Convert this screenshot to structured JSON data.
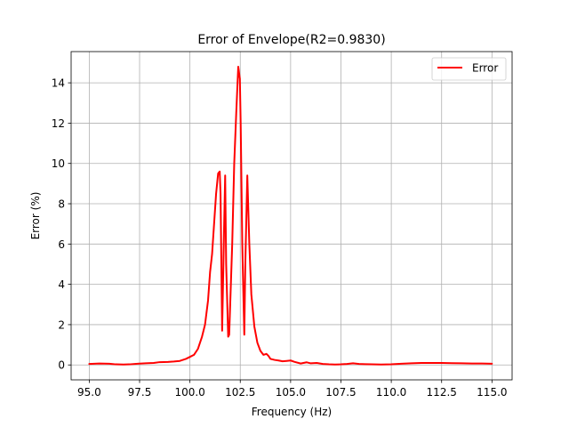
{
  "chart_data": {
    "type": "line",
    "title": "Error of Envelope(R2=0.9830)",
    "xlabel": "Frequency (Hz)",
    "ylabel": "Error (%)",
    "xlim": [
      94.1,
      116.0
    ],
    "ylim": [
      -0.74,
      15.55
    ],
    "xticks": [
      95.0,
      97.5,
      100.0,
      102.5,
      105.0,
      107.5,
      110.0,
      112.5,
      115.0
    ],
    "xtick_labels": [
      "95.0",
      "97.5",
      "100.0",
      "102.5",
      "105.0",
      "107.5",
      "110.0",
      "112.5",
      "115.0"
    ],
    "yticks": [
      0,
      2,
      4,
      6,
      8,
      10,
      12,
      14
    ],
    "ytick_labels": [
      "0",
      "2",
      "4",
      "6",
      "8",
      "10",
      "12",
      "14"
    ],
    "grid": true,
    "legend_position": "top-right",
    "series": [
      {
        "name": "Error",
        "color": "#ff0000",
        "x": [
          95.0,
          95.5,
          96.0,
          96.3,
          96.7,
          97.0,
          97.4,
          97.8,
          98.2,
          98.5,
          98.9,
          99.2,
          99.5,
          99.8,
          100.0,
          100.2,
          100.4,
          100.6,
          100.75,
          100.9,
          101.0,
          101.1,
          101.2,
          101.3,
          101.4,
          101.48,
          101.52,
          101.6,
          101.7,
          101.75,
          101.8,
          101.9,
          101.95,
          102.0,
          102.1,
          102.2,
          102.3,
          102.4,
          102.48,
          102.52,
          102.6,
          102.7,
          102.75,
          102.85,
          102.95,
          103.05,
          103.2,
          103.35,
          103.5,
          103.65,
          103.8,
          103.9,
          104.0,
          104.2,
          104.4,
          104.6,
          104.8,
          105.0,
          105.2,
          105.5,
          105.8,
          106.0,
          106.3,
          106.6,
          106.9,
          107.2,
          107.5,
          107.8,
          108.1,
          108.4,
          108.7,
          109.0,
          109.5,
          110.0,
          110.5,
          111.0,
          111.5,
          112.0,
          112.5,
          113.0,
          113.5,
          114.0,
          114.5,
          115.0
        ],
        "y": [
          0.05,
          0.07,
          0.06,
          0.03,
          0.02,
          0.03,
          0.06,
          0.08,
          0.1,
          0.14,
          0.15,
          0.17,
          0.2,
          0.3,
          0.4,
          0.5,
          0.8,
          1.4,
          2.0,
          3.2,
          4.6,
          5.5,
          7.0,
          8.5,
          9.5,
          9.6,
          8.5,
          1.7,
          7.0,
          9.4,
          5.0,
          1.4,
          1.5,
          3.0,
          6.0,
          10.0,
          12.5,
          14.8,
          14.2,
          12.0,
          6.0,
          1.5,
          5.0,
          9.4,
          6.0,
          3.5,
          1.9,
          1.1,
          0.7,
          0.5,
          0.55,
          0.45,
          0.3,
          0.25,
          0.22,
          0.18,
          0.2,
          0.22,
          0.15,
          0.07,
          0.13,
          0.08,
          0.1,
          0.05,
          0.03,
          0.02,
          0.03,
          0.05,
          0.08,
          0.05,
          0.04,
          0.03,
          0.02,
          0.03,
          0.06,
          0.08,
          0.1,
          0.1,
          0.1,
          0.09,
          0.08,
          0.07,
          0.07,
          0.06
        ]
      }
    ]
  }
}
